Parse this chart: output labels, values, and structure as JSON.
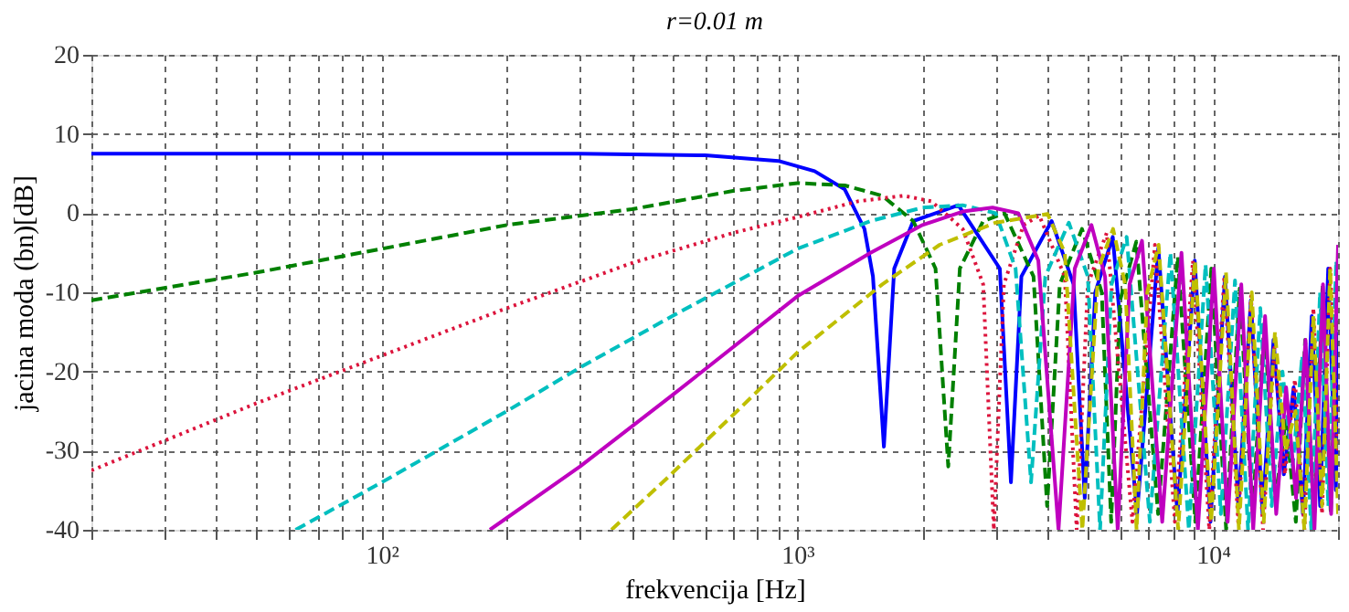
{
  "chart_data": {
    "type": "line",
    "title": "r=0.01 m",
    "xlabel": "frekvencija [Hz]",
    "ylabel": "jacina moda (bn)[dB]",
    "log": "x",
    "grid": true,
    "marker": "none",
    "xlim": [
      20,
      20000
    ],
    "ylim": [
      -40,
      20
    ],
    "xticks": [
      {
        "value": 20,
        "label": null
      },
      {
        "value": 30,
        "label": null
      },
      {
        "value": 40,
        "label": null
      },
      {
        "value": 50,
        "label": null
      },
      {
        "value": 60,
        "label": null
      },
      {
        "value": 70,
        "label": null
      },
      {
        "value": 80,
        "label": null
      },
      {
        "value": 90,
        "label": null
      },
      {
        "value": 100,
        "label": "10²"
      },
      {
        "value": 200,
        "label": null
      },
      {
        "value": 300,
        "label": null
      },
      {
        "value": 400,
        "label": null
      },
      {
        "value": 500,
        "label": null
      },
      {
        "value": 600,
        "label": null
      },
      {
        "value": 700,
        "label": null
      },
      {
        "value": 800,
        "label": null
      },
      {
        "value": 900,
        "label": null
      },
      {
        "value": 1000,
        "label": "10³"
      },
      {
        "value": 2000,
        "label": null
      },
      {
        "value": 3000,
        "label": null
      },
      {
        "value": 4000,
        "label": null
      },
      {
        "value": 5000,
        "label": null
      },
      {
        "value": 6000,
        "label": null
      },
      {
        "value": 7000,
        "label": null
      },
      {
        "value": 8000,
        "label": null
      },
      {
        "value": 9000,
        "label": null
      },
      {
        "value": 10000,
        "label": "10⁴"
      },
      {
        "value": 20000,
        "label": null
      }
    ],
    "yticks": [
      -40,
      -30,
      -20,
      -10,
      0,
      10,
      20
    ],
    "series": [
      {
        "color": "#0000ff",
        "line_style": "solid",
        "x": [
          20,
          300,
          600,
          900,
          1100,
          1300,
          1450,
          1520,
          1615,
          1710,
          1900,
          2440,
          3070,
          3265,
          3460,
          4090,
          4620,
          4915,
          5210,
          5740,
          6565,
          7390,
          8215,
          9040,
          9865,
          10690,
          11515,
          12340,
          13165,
          13990,
          14815,
          15640,
          16465,
          17290,
          18115,
          18940,
          19765,
          20000
        ],
        "values": [
          7.5,
          7.5,
          7.3,
          6.6,
          5.3,
          3,
          -2,
          -8,
          -29.5,
          -7,
          -1,
          1,
          -7,
          -34,
          -8,
          -1,
          -9,
          -36,
          -10,
          -3,
          -38,
          -4.4,
          -38,
          -6,
          -39,
          -8,
          -37,
          -11,
          -38,
          -16,
          -33,
          -22,
          -38,
          -13,
          -37,
          -7,
          -35,
          -15
        ]
      },
      {
        "color": "#008000",
        "line_style": "dashed",
        "x": [
          20,
          50,
          100,
          200,
          400,
          700,
          1000,
          1300,
          1600,
          1900,
          2150,
          2307,
          2460,
          2800,
          3150,
          3700,
          3990,
          4280,
          4840,
          5400,
          5690,
          5980,
          6540,
          7380,
          8230,
          9070,
          9910,
          10760,
          11600,
          12450,
          13290,
          14140,
          14980,
          15830,
          16670,
          17520,
          18360,
          19210,
          20000
        ],
        "values": [
          -11,
          -7.5,
          -4.5,
          -1.5,
          0.5,
          2.8,
          3.8,
          3.5,
          2.2,
          -1,
          -7,
          -32,
          -7,
          -1,
          0,
          -8,
          -37,
          -9,
          -2,
          -10,
          -39,
          -11,
          -3.6,
          -38,
          -5.5,
          -39,
          -7,
          -40,
          -9.5,
          -38,
          -14,
          -36,
          -26,
          -39,
          -16,
          -39,
          -9,
          -38,
          -6
        ]
      },
      {
        "color": "#dc143c",
        "line_style": "dotted",
        "x": [
          20,
          50,
          100,
          200,
          400,
          700,
          1000,
          1400,
          1800,
          2100,
          2500,
          2800,
          2970,
          3140,
          3500,
          3820,
          4400,
          4700,
          5000,
          5550,
          6400,
          7250,
          8100,
          8950,
          9800,
          10650,
          11500,
          12350,
          13200,
          14050,
          14900,
          15750,
          16600,
          17450,
          18300,
          19150,
          20000
        ],
        "values": [
          -32.5,
          -24,
          -18,
          -12,
          -6.3,
          -2.5,
          -0.5,
          1.5,
          2.2,
          1.5,
          -2,
          -9,
          -40,
          -9,
          -1.5,
          -0.3,
          -8,
          -40,
          -9,
          -2.5,
          -39,
          -4,
          -39,
          -6,
          -40,
          -8,
          -39,
          -10.5,
          -40,
          -17,
          -33,
          -21,
          -40,
          -12,
          -38,
          -7,
          -30
        ]
      },
      {
        "color": "#00bfbf",
        "line_style": "dashed",
        "x": [
          62,
          100,
          200,
          300,
          500,
          1000,
          1500,
          2000,
          2500,
          3000,
          3350,
          3650,
          3950,
          4500,
          5000,
          5350,
          5700,
          6200,
          7050,
          7900,
          8750,
          9600,
          10450,
          11300,
          12150,
          13000,
          13850,
          14700,
          15550,
          16400,
          17250,
          18100,
          18950,
          19800,
          20000
        ],
        "values": [
          -40,
          -34,
          -25,
          -19.5,
          -13,
          -4.5,
          -1,
          0.7,
          1,
          0,
          -7,
          -34,
          -8,
          -1.2,
          -8,
          -40,
          -9,
          -3,
          -39,
          -5,
          -40,
          -6.5,
          -38,
          -8.5,
          -40,
          -12,
          -37,
          -20,
          -32,
          -18,
          -40,
          -10,
          -37,
          -6,
          -10
        ]
      },
      {
        "color": "#bf00bf",
        "line_style": "solid",
        "x": [
          182,
          300,
          500,
          1000,
          1500,
          2000,
          2500,
          2950,
          3400,
          3800,
          4250,
          4650,
          5100,
          5500,
          5900,
          6300,
          6750,
          7550,
          8400,
          9200,
          10050,
          10850,
          11700,
          12500,
          13350,
          14200,
          15000,
          15850,
          16700,
          17550,
          18400,
          19250,
          20000
        ],
        "values": [
          -40,
          -32,
          -23,
          -10.5,
          -5,
          -1.5,
          0.2,
          0.7,
          0,
          -6,
          -40,
          -7,
          -1.5,
          -8,
          -40,
          -9,
          -3.5,
          -39,
          -5,
          -40,
          -7,
          -39,
          -9,
          -40,
          -13,
          -38,
          -22,
          -36,
          -16,
          -40,
          -9,
          -38,
          -4
        ]
      },
      {
        "color": "#bfbf00",
        "line_style": "dashed",
        "x": [
          357,
          485,
          700,
          1000,
          1600,
          2200,
          3000,
          4000,
          4400,
          4850,
          5300,
          5750,
          6150,
          6550,
          6950,
          7400,
          8250,
          9050,
          9900,
          10750,
          11550,
          12400,
          13250,
          14100,
          14950,
          15800,
          16600,
          17450,
          18300,
          19150,
          20000
        ],
        "values": [
          -40,
          -33.5,
          -25.5,
          -17.6,
          -9,
          -4,
          -1.2,
          -0.1,
          -5,
          -40,
          -7,
          -2,
          -9,
          -40,
          -10,
          -4,
          -40,
          -6,
          -39,
          -7.5,
          -40,
          -10,
          -39,
          -15,
          -30,
          -25,
          -40,
          -13,
          -37,
          -7,
          -38
        ]
      }
    ]
  }
}
